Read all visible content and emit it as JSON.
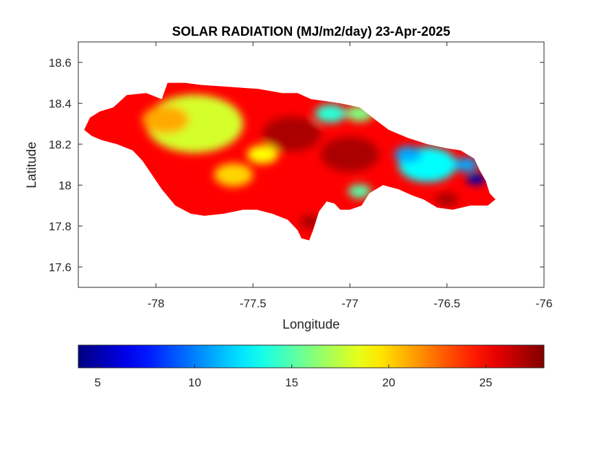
{
  "chart_data": {
    "type": "heatmap",
    "title": "SOLAR RADIATION (MJ/m2/day) 23-Apr-2025",
    "xlabel": "Longitude",
    "ylabel": "Latitude",
    "xlim": [
      -78.4,
      -76.0
    ],
    "ylim": [
      17.5,
      18.7
    ],
    "xticks": [
      -78,
      -77.5,
      -77,
      -76.5,
      -76
    ],
    "xtick_labels": [
      "-78",
      "-77.5",
      "-77",
      "-76.5",
      "-76"
    ],
    "yticks": [
      17.6,
      17.8,
      18.0,
      18.2,
      18.4,
      18.6
    ],
    "ytick_labels": [
      "17.6",
      "17.8",
      "18",
      "18.2",
      "18.4",
      "18.6"
    ],
    "colormap": "jet",
    "colorbar": {
      "location": "bottom",
      "range": [
        4,
        28
      ],
      "ticks": [
        5,
        10,
        15,
        20,
        25
      ],
      "tick_labels": [
        "5",
        "10",
        "15",
        "20",
        "25"
      ]
    },
    "grid": false,
    "region_outline": [
      [
        -78.37,
        18.27
      ],
      [
        -78.34,
        18.33
      ],
      [
        -78.29,
        18.36
      ],
      [
        -78.22,
        18.38
      ],
      [
        -78.15,
        18.44
      ],
      [
        -78.05,
        18.45
      ],
      [
        -77.97,
        18.42
      ],
      [
        -77.94,
        18.5
      ],
      [
        -77.85,
        18.5
      ],
      [
        -77.77,
        18.49
      ],
      [
        -77.62,
        18.48
      ],
      [
        -77.47,
        18.47
      ],
      [
        -77.35,
        18.45
      ],
      [
        -77.27,
        18.45
      ],
      [
        -77.2,
        18.42
      ],
      [
        -77.12,
        18.41
      ],
      [
        -77.05,
        18.4
      ],
      [
        -76.95,
        18.38
      ],
      [
        -76.87,
        18.32
      ],
      [
        -76.8,
        18.27
      ],
      [
        -76.7,
        18.23
      ],
      [
        -76.6,
        18.2
      ],
      [
        -76.5,
        18.18
      ],
      [
        -76.43,
        18.17
      ],
      [
        -76.36,
        18.13
      ],
      [
        -76.33,
        18.07
      ],
      [
        -76.3,
        18.02
      ],
      [
        -76.28,
        17.96
      ],
      [
        -76.25,
        17.93
      ],
      [
        -76.29,
        17.9
      ],
      [
        -76.38,
        17.9
      ],
      [
        -76.47,
        17.88
      ],
      [
        -76.55,
        17.89
      ],
      [
        -76.62,
        17.93
      ],
      [
        -76.68,
        17.95
      ],
      [
        -76.75,
        17.98
      ],
      [
        -76.83,
        18.0
      ],
      [
        -76.9,
        17.96
      ],
      [
        -76.94,
        17.9
      ],
      [
        -77.0,
        17.88
      ],
      [
        -77.05,
        17.88
      ],
      [
        -77.08,
        17.91
      ],
      [
        -77.12,
        17.92
      ],
      [
        -77.16,
        17.87
      ],
      [
        -77.19,
        17.78
      ],
      [
        -77.21,
        17.73
      ],
      [
        -77.25,
        17.74
      ],
      [
        -77.27,
        17.78
      ],
      [
        -77.32,
        17.83
      ],
      [
        -77.4,
        17.86
      ],
      [
        -77.48,
        17.88
      ],
      [
        -77.55,
        17.88
      ],
      [
        -77.65,
        17.86
      ],
      [
        -77.75,
        17.85
      ],
      [
        -77.82,
        17.86
      ],
      [
        -77.9,
        17.9
      ],
      [
        -77.97,
        17.98
      ],
      [
        -78.02,
        18.05
      ],
      [
        -78.07,
        18.12
      ],
      [
        -78.12,
        18.17
      ],
      [
        -78.2,
        18.2
      ],
      [
        -78.28,
        18.22
      ],
      [
        -78.33,
        18.24
      ],
      [
        -78.37,
        18.27
      ]
    ],
    "field_blobs": [
      {
        "lon": -77.8,
        "lat": 18.3,
        "value": 18,
        "radius": 0.25
      },
      {
        "lon": -77.6,
        "lat": 18.05,
        "value": 20,
        "radius": 0.1
      },
      {
        "lon": -77.45,
        "lat": 18.15,
        "value": 19,
        "radius": 0.08
      },
      {
        "lon": -77.95,
        "lat": 18.32,
        "value": 21,
        "radius": 0.12
      },
      {
        "lon": -77.3,
        "lat": 18.25,
        "value": 27,
        "radius": 0.15
      },
      {
        "lon": -77.0,
        "lat": 18.15,
        "value": 27,
        "radius": 0.15
      },
      {
        "lon": -77.2,
        "lat": 17.82,
        "value": 27,
        "radius": 0.06
      },
      {
        "lon": -76.95,
        "lat": 17.97,
        "value": 15,
        "radius": 0.06
      },
      {
        "lon": -77.1,
        "lat": 18.35,
        "value": 14,
        "radius": 0.08
      },
      {
        "lon": -76.95,
        "lat": 18.35,
        "value": 16,
        "radius": 0.07
      },
      {
        "lon": -76.6,
        "lat": 18.1,
        "value": 13,
        "radius": 0.15
      },
      {
        "lon": -76.7,
        "lat": 18.15,
        "value": 11,
        "radius": 0.07
      },
      {
        "lon": -76.35,
        "lat": 18.03,
        "value": 5,
        "radius": 0.05
      },
      {
        "lon": -76.4,
        "lat": 18.1,
        "value": 11,
        "radius": 0.06
      },
      {
        "lon": -76.5,
        "lat": 17.93,
        "value": 27,
        "radius": 0.06
      }
    ],
    "background_value": 25
  }
}
